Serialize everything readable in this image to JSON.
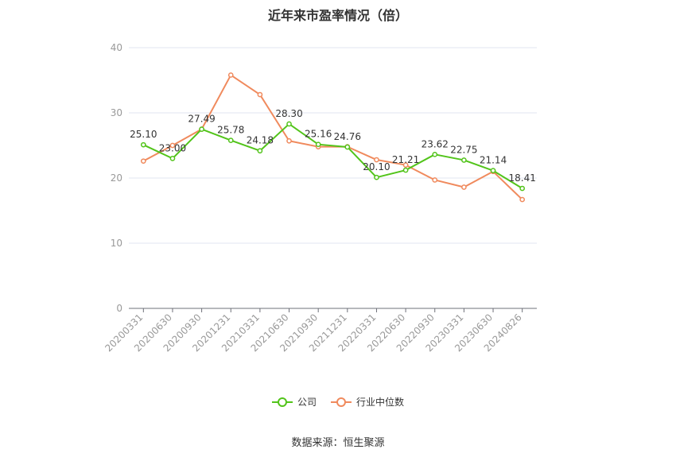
{
  "chart_data": {
    "type": "line",
    "title": "近年来市盈率情况（倍）",
    "categories": [
      "20200331",
      "20200630",
      "20200930",
      "20201231",
      "20210331",
      "20210630",
      "20210930",
      "20211231",
      "20220331",
      "20220630",
      "20220930",
      "20230331",
      "20230630",
      "20240826"
    ],
    "ylim": [
      0,
      40
    ],
    "yticks": [
      0,
      10,
      20,
      30,
      40
    ],
    "grid": true,
    "legend_position": "bottom",
    "series": [
      {
        "name": "公司",
        "color": "#52c41a",
        "values": [
          25.1,
          23.0,
          27.49,
          25.78,
          24.18,
          28.3,
          25.16,
          24.76,
          20.1,
          21.21,
          23.62,
          22.75,
          21.14,
          18.41
        ],
        "labels": [
          "25.10",
          "23.00",
          "27.49",
          "25.78",
          "24.18",
          "28.30",
          "25.16",
          "24.76",
          "20.10",
          "21.21",
          "23.62",
          "22.75",
          "21.14",
          "18.41"
        ]
      },
      {
        "name": "行业中位数",
        "color": "#f08a5d",
        "values": [
          22.6,
          25.0,
          27.5,
          35.8,
          32.8,
          25.7,
          24.8,
          24.8,
          22.8,
          22.0,
          19.7,
          18.6,
          21.0,
          16.7
        ]
      }
    ]
  },
  "source_text": "数据来源：恒生聚源"
}
